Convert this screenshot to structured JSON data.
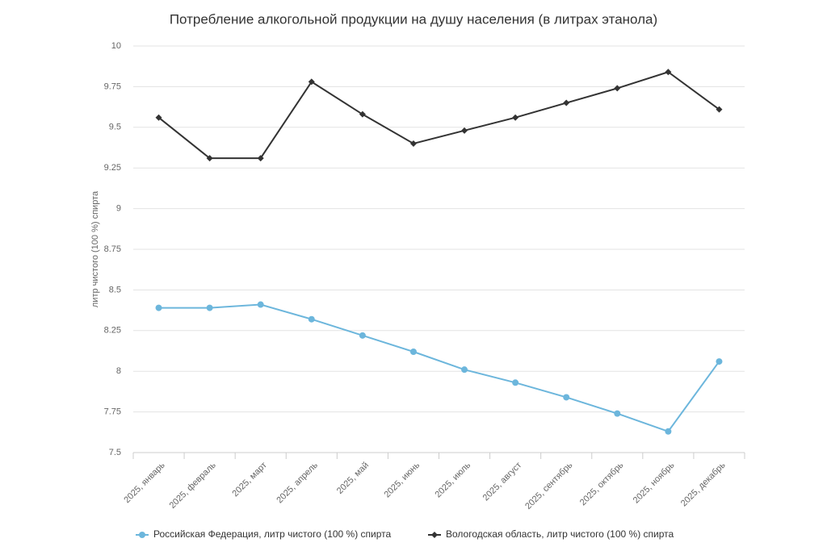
{
  "chart_data": {
    "type": "line",
    "title": "Потребление алкогольной продукции на душу населения (в литрах этанола)",
    "y_label": "литр чистого (100 %) спирта",
    "categories": [
      "2025, январь",
      "2025, февраль",
      "2025, март",
      "2025, апрель",
      "2025, май",
      "2025, июнь",
      "2025, июль",
      "2025, август",
      "2025, сентябрь",
      "2025, октябрь",
      "2025, ноябрь",
      "2025, декабрь"
    ],
    "series": [
      {
        "name": "Российская Федерация, литр чистого (100 %) спирта",
        "color": "#6cb6dc",
        "marker": "circle",
        "values": [
          8.39,
          8.39,
          8.41,
          8.32,
          8.22,
          8.12,
          8.01,
          7.93,
          7.84,
          7.74,
          7.63,
          8.06
        ]
      },
      {
        "name": "Вологодская область, литр чистого (100 %) спирта",
        "color": "#333333",
        "marker": "diamond",
        "values": [
          9.56,
          9.31,
          9.31,
          9.78,
          9.58,
          9.4,
          9.48,
          9.56,
          9.65,
          9.74,
          9.84,
          9.61
        ]
      }
    ],
    "ylim": [
      7.5,
      10
    ],
    "yticks": [
      7.5,
      7.75,
      8,
      8.25,
      8.5,
      8.75,
      9,
      9.25,
      9.5,
      9.75,
      10
    ],
    "grid": true,
    "legend": "bottom"
  }
}
